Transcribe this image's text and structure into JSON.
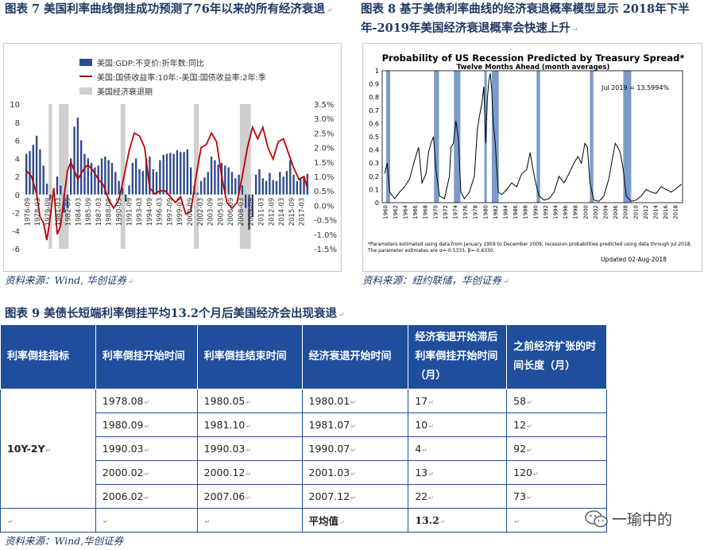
{
  "fig7": {
    "caption": "图表 7   美国利率曲线倒挂成功预测了76年以来的所有经济衰退",
    "source": "资料来源：Wind, 华创证券",
    "legend": [
      "美国:GDP:不变价:折年数:同比",
      "美国:国债收益率:10年:-美国:国债收益率:2年:季",
      "美国经济衰退期"
    ],
    "colors": {
      "gdp": "#2e4a8a",
      "spread": "#c00000",
      "recession": "#cfcfcf"
    }
  },
  "fig8": {
    "caption": "图表 8   基于美债利率曲线的经济衰退概率模型显示 2018年下半年-2019年美国经济衰退概率会快速上升",
    "source": "资料来源：纽约联储，华创证券",
    "title": "Probability of US Recession Predicted by Treasury Spread*",
    "subtitle": "Twelve Months Ahead (month averages)",
    "annotation": "Jul 2019 = 13.5994%",
    "note1": "*Parameters estimated using data from January 1959 to December 2009, recession probabilities predicted using data through Jul 2018.",
    "note2": "The parameter estimates are α=-0.5333, β=-0.6330.",
    "updated": "Updated 02-Aug-2018",
    "colors": {
      "line": "#000000",
      "recession": "#7b9cc9"
    }
  },
  "fig9": {
    "caption": "图表 9   美债长短端利率倒挂平均13.2个月后美国经济会出现衰退",
    "source": "资料来源：Wind,华创证券",
    "headers": [
      "利率倒挂指标",
      "利率倒挂开始时间",
      "利率倒挂结束时间",
      "经济衰退开始时间",
      "经济衰退开始滞后利率倒挂开始时间（月）",
      "之前经济扩张的时间长度（月）"
    ],
    "indicator": "10Y-2Y",
    "rows": [
      [
        "1978.08",
        "1980.05",
        "1980.01",
        "17",
        "58"
      ],
      [
        "1980.09",
        "1981.10",
        "1981.07",
        "10",
        "12"
      ],
      [
        "1990.03",
        "1990.03",
        "1990.07",
        "4",
        "92"
      ],
      [
        "2000.02",
        "2000.12",
        "2001.03",
        "13",
        "120"
      ],
      [
        "2006.02",
        "2007.06",
        "2007.12",
        "22",
        "73"
      ]
    ],
    "avg_label": "平均值",
    "avg_value": "13.2"
  },
  "watermark": "一瑜中的",
  "chart_data": [
    {
      "type": "bar+line",
      "title": "",
      "x_tick_labels": [
        "1976-09",
        "1978-03",
        "1979-09",
        "1981-03",
        "1982-09",
        "1984-03",
        "1985-09",
        "1987-03",
        "1988-09",
        "1990-03",
        "1991-09",
        "1993-03",
        "1994-09",
        "1996-03",
        "1997-09",
        "1999-03",
        "2000-09",
        "2002-03",
        "2003-09",
        "2005-03",
        "2006-09",
        "2008-03",
        "2009-09",
        "2011-03",
        "2012-09",
        "2014-03",
        "2015-09",
        "2017-03"
      ],
      "y_left_ticks": [
        "10",
        "8",
        "6",
        "4",
        "2",
        "0",
        "-2",
        "-4",
        "-6"
      ],
      "y_right_ticks": [
        "3.5%",
        "3.0%",
        "2.5%",
        "2.0%",
        "1.5%",
        "1.0%",
        "0.5%",
        "0.0%",
        "-0.5%",
        "-1.0%",
        "-1.5%"
      ],
      "ylim_left": [
        -6,
        10
      ],
      "ylim_right": [
        -1.5,
        3.5
      ],
      "recessions": [
        [
          1980.0,
          1980.5
        ],
        [
          1981.5,
          1982.9
        ],
        [
          1990.5,
          1991.2
        ],
        [
          2001.2,
          2001.9
        ],
        [
          2007.9,
          2009.5
        ]
      ],
      "series": [
        {
          "name": "美国:GDP:不变价:折年数:同比",
          "kind": "bar",
          "axis": "left",
          "x": [
            1976.75,
            1977.25,
            1977.75,
            1978.25,
            1978.75,
            1979.25,
            1979.75,
            1980.25,
            1980.75,
            1981.25,
            1981.75,
            1982.25,
            1982.75,
            1983.25,
            1983.75,
            1984.25,
            1984.75,
            1985.25,
            1985.75,
            1986.25,
            1986.75,
            1987.25,
            1987.75,
            1988.25,
            1988.75,
            1989.25,
            1989.75,
            1990.25,
            1990.75,
            1991.25,
            1991.75,
            1992.25,
            1992.75,
            1993.25,
            1993.75,
            1994.25,
            1994.75,
            1995.25,
            1995.75,
            1996.25,
            1996.75,
            1997.25,
            1997.75,
            1998.25,
            1998.75,
            1999.25,
            1999.75,
            2000.25,
            2000.75,
            2001.25,
            2001.75,
            2002.25,
            2002.75,
            2003.25,
            2003.75,
            2004.25,
            2004.75,
            2005.25,
            2005.75,
            2006.25,
            2006.75,
            2007.25,
            2007.75,
            2008.25,
            2008.75,
            2009.25,
            2009.75,
            2010.25,
            2010.75,
            2011.25,
            2011.75,
            2012.25,
            2012.75,
            2013.25,
            2013.75,
            2014.25,
            2014.75,
            2015.25,
            2015.75,
            2016.25,
            2016.75,
            2017.25,
            2017.75
          ],
          "values": [
            4.5,
            4.8,
            5.5,
            6.5,
            5.0,
            3.2,
            1.2,
            -0.5,
            -0.2,
            2.0,
            1.0,
            -2.0,
            -1.5,
            4.0,
            7.5,
            8.5,
            6.0,
            4.5,
            4.0,
            3.5,
            3.0,
            3.2,
            4.0,
            4.2,
            3.8,
            3.5,
            2.5,
            1.5,
            0.8,
            -0.8,
            1.0,
            3.5,
            4.0,
            2.8,
            2.6,
            4.0,
            4.2,
            2.8,
            2.5,
            3.8,
            4.4,
            4.5,
            4.6,
            4.5,
            4.9,
            4.7,
            4.7,
            5.0,
            3.0,
            1.0,
            0.2,
            1.5,
            1.9,
            2.5,
            4.2,
            3.8,
            3.3,
            3.5,
            3.2,
            3.0,
            2.5,
            1.8,
            2.2,
            1.0,
            -1.5,
            -3.9,
            -2.5,
            2.2,
            2.8,
            1.8,
            1.5,
            2.4,
            1.6,
            1.5,
            2.5,
            2.0,
            2.6,
            3.8,
            2.2,
            1.5,
            1.8,
            2.0,
            2.3
          ]
        },
        {
          "name": "美国:国债收益率:10年:-美国:国债收益率:2年:季",
          "kind": "line",
          "axis": "right",
          "x": [
            1976.75,
            1977.5,
            1978.25,
            1978.75,
            1979.25,
            1979.75,
            1980.25,
            1980.75,
            1981.25,
            1981.75,
            1982.25,
            1982.75,
            1983.25,
            1983.75,
            1984.25,
            1984.75,
            1985.25,
            1985.75,
            1986.5,
            1987.25,
            1988.0,
            1988.75,
            1989.5,
            1990.25,
            1991.0,
            1991.75,
            1992.5,
            1993.25,
            1994.0,
            1994.75,
            1995.5,
            1996.25,
            1997.0,
            1997.75,
            1998.5,
            1999.25,
            2000.0,
            2000.75,
            2001.5,
            2002.25,
            2003.0,
            2003.75,
            2004.5,
            2005.25,
            2006.0,
            2006.75,
            2007.5,
            2008.25,
            2009.0,
            2009.75,
            2010.5,
            2011.25,
            2012.0,
            2012.75,
            2013.5,
            2014.25,
            2015.0,
            2015.75,
            2016.5,
            2017.25,
            2017.75
          ],
          "values": [
            1.2,
            1.0,
            0.4,
            -0.4,
            -0.6,
            -1.2,
            -0.4,
            0.6,
            -1.0,
            -0.7,
            0.3,
            1.2,
            1.5,
            1.2,
            0.9,
            1.1,
            1.3,
            1.4,
            1.2,
            0.9,
            0.7,
            0.2,
            -0.1,
            0.2,
            1.0,
            1.9,
            2.5,
            2.4,
            2.0,
            0.6,
            0.4,
            0.5,
            0.5,
            0.3,
            0.1,
            0.3,
            -0.3,
            -0.2,
            1.0,
            2.0,
            2.1,
            2.5,
            2.2,
            1.0,
            0.1,
            -0.1,
            0.1,
            1.0,
            2.0,
            2.7,
            2.3,
            2.7,
            2.0,
            1.6,
            2.2,
            2.3,
            1.8,
            1.3,
            0.9,
            1.0,
            0.6
          ]
        }
      ]
    },
    {
      "type": "line",
      "title": "Probability of US Recession Predicted by Treasury Spread*",
      "subtitle": "Twelve Months Ahead (month averages)",
      "ylim": [
        0,
        1
      ],
      "y_ticks": [
        "0",
        "0.1",
        "0.2",
        "0.3",
        "0.4",
        "0.5",
        "0.6",
        "0.7",
        "0.8",
        "0.9",
        "1"
      ],
      "x_tick_labels": [
        "1960",
        "1962",
        "1964",
        "1966",
        "1968",
        "1970",
        "1972",
        "1974",
        "1976",
        "1978",
        "1980",
        "1982",
        "1984",
        "1986",
        "1988",
        "1990",
        "1992",
        "1994",
        "1996",
        "1998",
        "2000",
        "2002",
        "2004",
        "2006",
        "2008",
        "2010",
        "2012",
        "2014",
        "2016",
        "2018"
      ],
      "recessions": [
        [
          1960.3,
          1961.1
        ],
        [
          1969.9,
          1970.9
        ],
        [
          1973.9,
          1975.2
        ],
        [
          1980.0,
          1980.5
        ],
        [
          1981.5,
          1982.9
        ],
        [
          1990.5,
          1991.2
        ],
        [
          2001.2,
          2001.9
        ],
        [
          2007.9,
          2009.5
        ]
      ],
      "series": [
        {
          "name": "",
          "x": [
            1960,
            1960.5,
            1961,
            1962,
            1963,
            1964,
            1965,
            1966,
            1966.8,
            1967.5,
            1968.3,
            1968.8,
            1969.3,
            1969.8,
            1970.3,
            1971,
            1972,
            1973,
            1973.3,
            1973.8,
            1974.3,
            1974.8,
            1975.3,
            1976,
            1977,
            1978,
            1978.6,
            1979,
            1979.5,
            1979.9,
            1980.3,
            1980.6,
            1980.9,
            1981.2,
            1981.5,
            1981.8,
            1982.2,
            1982.8,
            1983.5,
            1984.5,
            1985.5,
            1986.5,
            1987.5,
            1988.5,
            1989.2,
            1989.8,
            1990.3,
            1991,
            1992,
            1993,
            1994,
            1995,
            1996,
            1997,
            1998,
            1998.8,
            1999.5,
            2000.2,
            2000.7,
            2001.2,
            2002,
            2003,
            2004,
            2005,
            2005.8,
            2006.3,
            2006.8,
            2007.3,
            2007.9,
            2008.5,
            2009.5,
            2010.5,
            2011.5,
            2012.5,
            2013.5,
            2014.5,
            2015.5,
            2016.5,
            2017.5,
            2018.3,
            2019.6
          ],
          "values": [
            0.22,
            0.3,
            0.08,
            0.03,
            0.08,
            0.12,
            0.18,
            0.32,
            0.42,
            0.15,
            0.22,
            0.38,
            0.45,
            0.5,
            0.25,
            0.05,
            0.03,
            0.2,
            0.42,
            0.45,
            0.62,
            0.48,
            0.08,
            0.03,
            0.08,
            0.2,
            0.55,
            0.65,
            0.75,
            0.88,
            0.45,
            0.78,
            0.92,
            0.98,
            0.85,
            0.6,
            0.45,
            0.08,
            0.06,
            0.1,
            0.15,
            0.12,
            0.22,
            0.25,
            0.38,
            0.25,
            0.15,
            0.05,
            0.02,
            0.03,
            0.08,
            0.2,
            0.15,
            0.22,
            0.3,
            0.35,
            0.3,
            0.45,
            0.42,
            0.15,
            0.02,
            0.01,
            0.05,
            0.18,
            0.35,
            0.45,
            0.42,
            0.38,
            0.25,
            0.05,
            0.01,
            0.02,
            0.05,
            0.1,
            0.08,
            0.07,
            0.12,
            0.1,
            0.08,
            0.1,
            0.14
          ]
        }
      ]
    }
  ]
}
